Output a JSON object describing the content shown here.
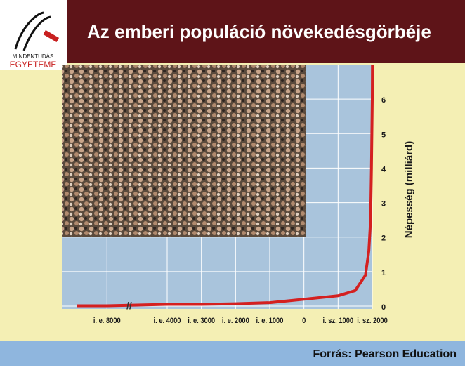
{
  "logo": {
    "line1": "MINDENTUDÁS",
    "line2": "EGYETEME"
  },
  "chart_data": {
    "type": "line",
    "title": "Az emberi populáció növekedésgörbéje",
    "y_label": "Népesség (milliárd)",
    "source": "Forrás: Pearson Education",
    "x": [
      -10000,
      -8000,
      -4000,
      -3000,
      -2000,
      -1000,
      0,
      1000,
      1500,
      1800,
      1900,
      1950,
      1975,
      1987,
      1999,
      2005
    ],
    "values": [
      0.01,
      0.01,
      0.05,
      0.05,
      0.07,
      0.1,
      0.2,
      0.3,
      0.45,
      0.9,
      1.6,
      2.5,
      4,
      5,
      6,
      7
    ],
    "color": "#d42020",
    "xlim": [
      -11000,
      2000
    ],
    "xticks": [
      {
        "value": -8000,
        "label": "i. e. 8000"
      },
      {
        "value": -4000,
        "label": "i. e. 4000"
      },
      {
        "value": -3000,
        "label": "i. e. 3000"
      },
      {
        "value": -2000,
        "label": "i. e. 2000"
      },
      {
        "value": -1000,
        "label": "i. e. 1000"
      },
      0,
      {
        "value": 1000,
        "label": "i. sz. 1000"
      },
      {
        "value": 2000,
        "label": "i. sz. 2000"
      }
    ],
    "ylim": [
      0,
      7
    ],
    "yticks": [
      0,
      1,
      2,
      3,
      4,
      5,
      6
    ],
    "grid": true
  }
}
